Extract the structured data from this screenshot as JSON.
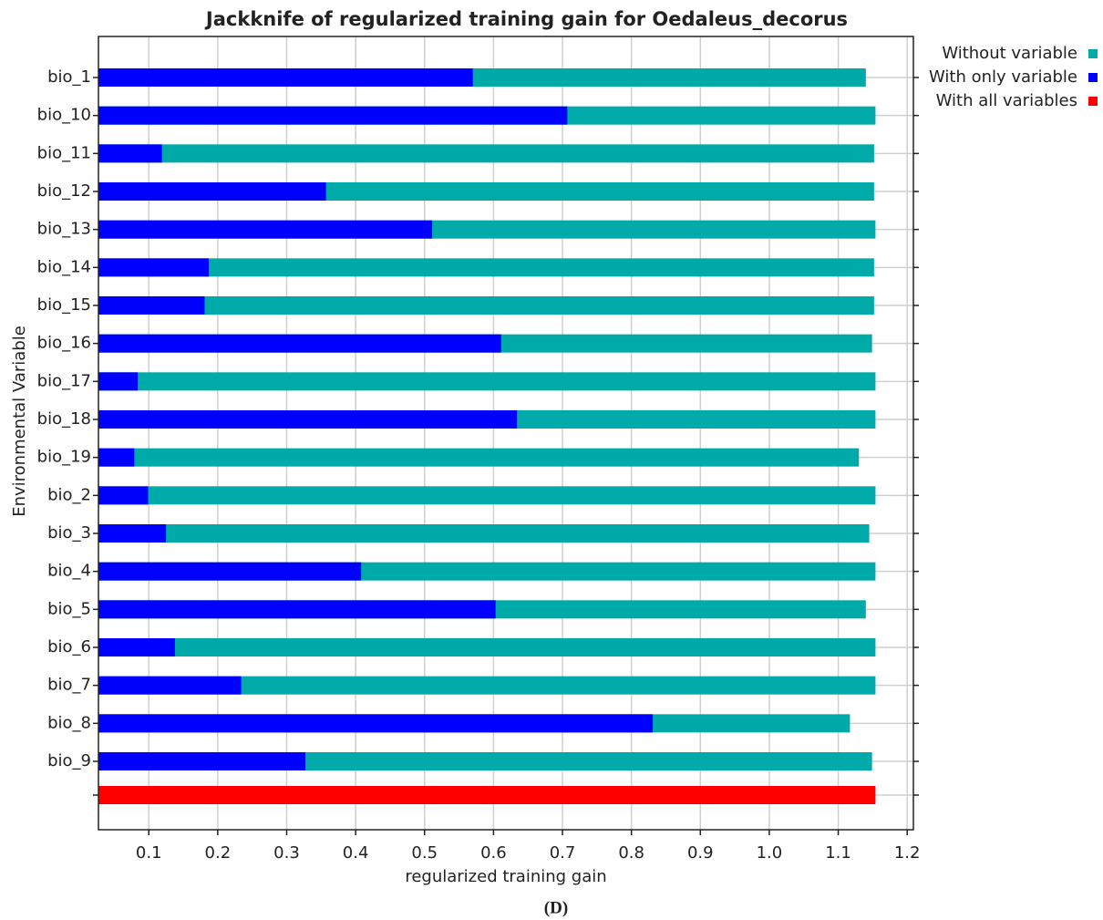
{
  "chart_data": {
    "type": "bar",
    "title": "Jackknife of regularized training gain for Oedaleus_decorus",
    "x_label": "regularized training gain",
    "y_label": "Environmental Variable",
    "caption": "(D)",
    "categories": [
      "bio_1",
      "bio_10",
      "bio_11",
      "bio_12",
      "bio_13",
      "bio_14",
      "bio_15",
      "bio_16",
      "bio_17",
      "bio_18",
      "bio_19",
      "bio_2",
      "bio_3",
      "bio_4",
      "bio_5",
      "bio_6",
      "bio_7",
      "bio_8",
      "bio_9",
      null
    ],
    "series": [
      {
        "name": "Without variable",
        "color": "#00aaa8",
        "values": [
          1.14,
          1.154,
          1.152,
          1.152,
          1.154,
          1.152,
          1.152,
          1.149,
          1.154,
          1.154,
          1.13,
          1.154,
          1.145,
          1.154,
          1.14,
          1.154,
          1.154,
          1.117,
          1.149,
          null
        ]
      },
      {
        "name": "With only variable",
        "color": "#0000ff",
        "values": [
          0.57,
          0.707,
          0.119,
          0.357,
          0.511,
          0.187,
          0.181,
          0.611,
          0.084,
          0.634,
          0.079,
          0.099,
          0.125,
          0.408,
          0.603,
          0.138,
          0.234,
          0.831,
          0.327,
          null
        ]
      },
      {
        "name": "With all variables",
        "color": "#ff0000",
        "values": [
          null,
          null,
          null,
          null,
          null,
          null,
          null,
          null,
          null,
          null,
          null,
          null,
          null,
          null,
          null,
          null,
          null,
          null,
          null,
          1.154
        ]
      }
    ],
    "xlim": [
      0.027,
      1.209
    ],
    "xticks": [
      0.1,
      0.2,
      0.3,
      0.4,
      0.5,
      0.6,
      0.7,
      0.8,
      0.9,
      {
        "value": 1,
        "label": "1.0"
      },
      1.1,
      1.2
    ],
    "grid": true,
    "legend": "top-right"
  }
}
